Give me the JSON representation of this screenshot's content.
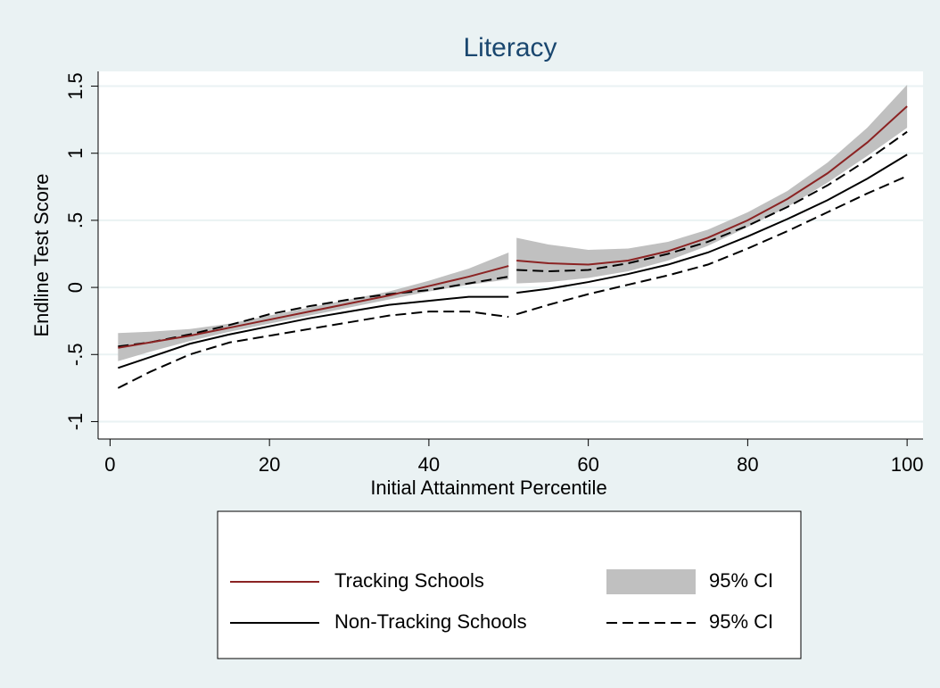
{
  "chart_data": {
    "type": "line",
    "title": "Literacy",
    "x_label": "Initial Attainment Percentile",
    "y_label": "Endline Test Score",
    "x": [
      1,
      5,
      10,
      15,
      20,
      25,
      30,
      35,
      40,
      45,
      50,
      50.5,
      51,
      55,
      60,
      65,
      70,
      75,
      80,
      85,
      90,
      95,
      100
    ],
    "series": [
      {
        "name": "Tracking Schools",
        "color": "#8b2323",
        "style": "solid",
        "values": [
          -0.45,
          -0.41,
          -0.36,
          -0.3,
          -0.24,
          -0.18,
          -0.12,
          -0.06,
          0.01,
          0.08,
          0.16,
          null,
          0.2,
          0.18,
          0.17,
          0.2,
          0.27,
          0.37,
          0.5,
          0.66,
          0.85,
          1.08,
          1.35
        ]
      },
      {
        "name": "95% CI",
        "color": "#c0c0c0",
        "style": "band",
        "lower": [
          -0.55,
          -0.48,
          -0.4,
          -0.33,
          -0.27,
          -0.21,
          -0.15,
          -0.09,
          -0.03,
          0.02,
          0.06,
          null,
          0.03,
          0.04,
          0.07,
          0.12,
          0.2,
          0.31,
          0.45,
          0.6,
          0.78,
          0.98,
          1.19
        ],
        "upper": [
          -0.34,
          -0.33,
          -0.31,
          -0.27,
          -0.21,
          -0.15,
          -0.09,
          -0.03,
          0.05,
          0.14,
          0.26,
          null,
          0.37,
          0.32,
          0.28,
          0.29,
          0.34,
          0.43,
          0.56,
          0.72,
          0.93,
          1.19,
          1.51
        ]
      },
      {
        "name": "Non-Tracking Schools",
        "color": "#000000",
        "style": "solid",
        "values": [
          -0.6,
          -0.52,
          -0.42,
          -0.35,
          -0.29,
          -0.23,
          -0.18,
          -0.13,
          -0.1,
          -0.07,
          -0.07,
          null,
          -0.04,
          -0.01,
          0.04,
          0.1,
          0.17,
          0.26,
          0.38,
          0.51,
          0.65,
          0.81,
          0.99
        ]
      },
      {
        "name": "95% CI",
        "color": "#000000",
        "style": "dashed",
        "lower": [
          -0.75,
          -0.63,
          -0.5,
          -0.41,
          -0.36,
          -0.31,
          -0.26,
          -0.21,
          -0.18,
          -0.18,
          -0.22,
          null,
          -0.2,
          -0.13,
          -0.05,
          0.02,
          0.09,
          0.17,
          0.29,
          0.42,
          0.56,
          0.7,
          0.83
        ],
        "upper": [
          -0.44,
          -0.41,
          -0.35,
          -0.28,
          -0.2,
          -0.14,
          -0.09,
          -0.05,
          -0.02,
          0.03,
          0.08,
          null,
          0.13,
          0.12,
          0.13,
          0.18,
          0.25,
          0.34,
          0.46,
          0.6,
          0.76,
          0.95,
          1.16
        ]
      }
    ],
    "xlim": [
      -1.5,
      102
    ],
    "ylim": [
      -1.13,
      1.61
    ],
    "xticks": [
      0,
      20,
      40,
      60,
      80,
      100
    ],
    "yticks": [
      {
        "value": -1,
        "label": "-1"
      },
      {
        "value": -0.5,
        "label": "-.5"
      },
      0,
      {
        "value": 0.5,
        "label": ".5"
      },
      1,
      1.5
    ],
    "grid": true,
    "legend": "bottom"
  }
}
